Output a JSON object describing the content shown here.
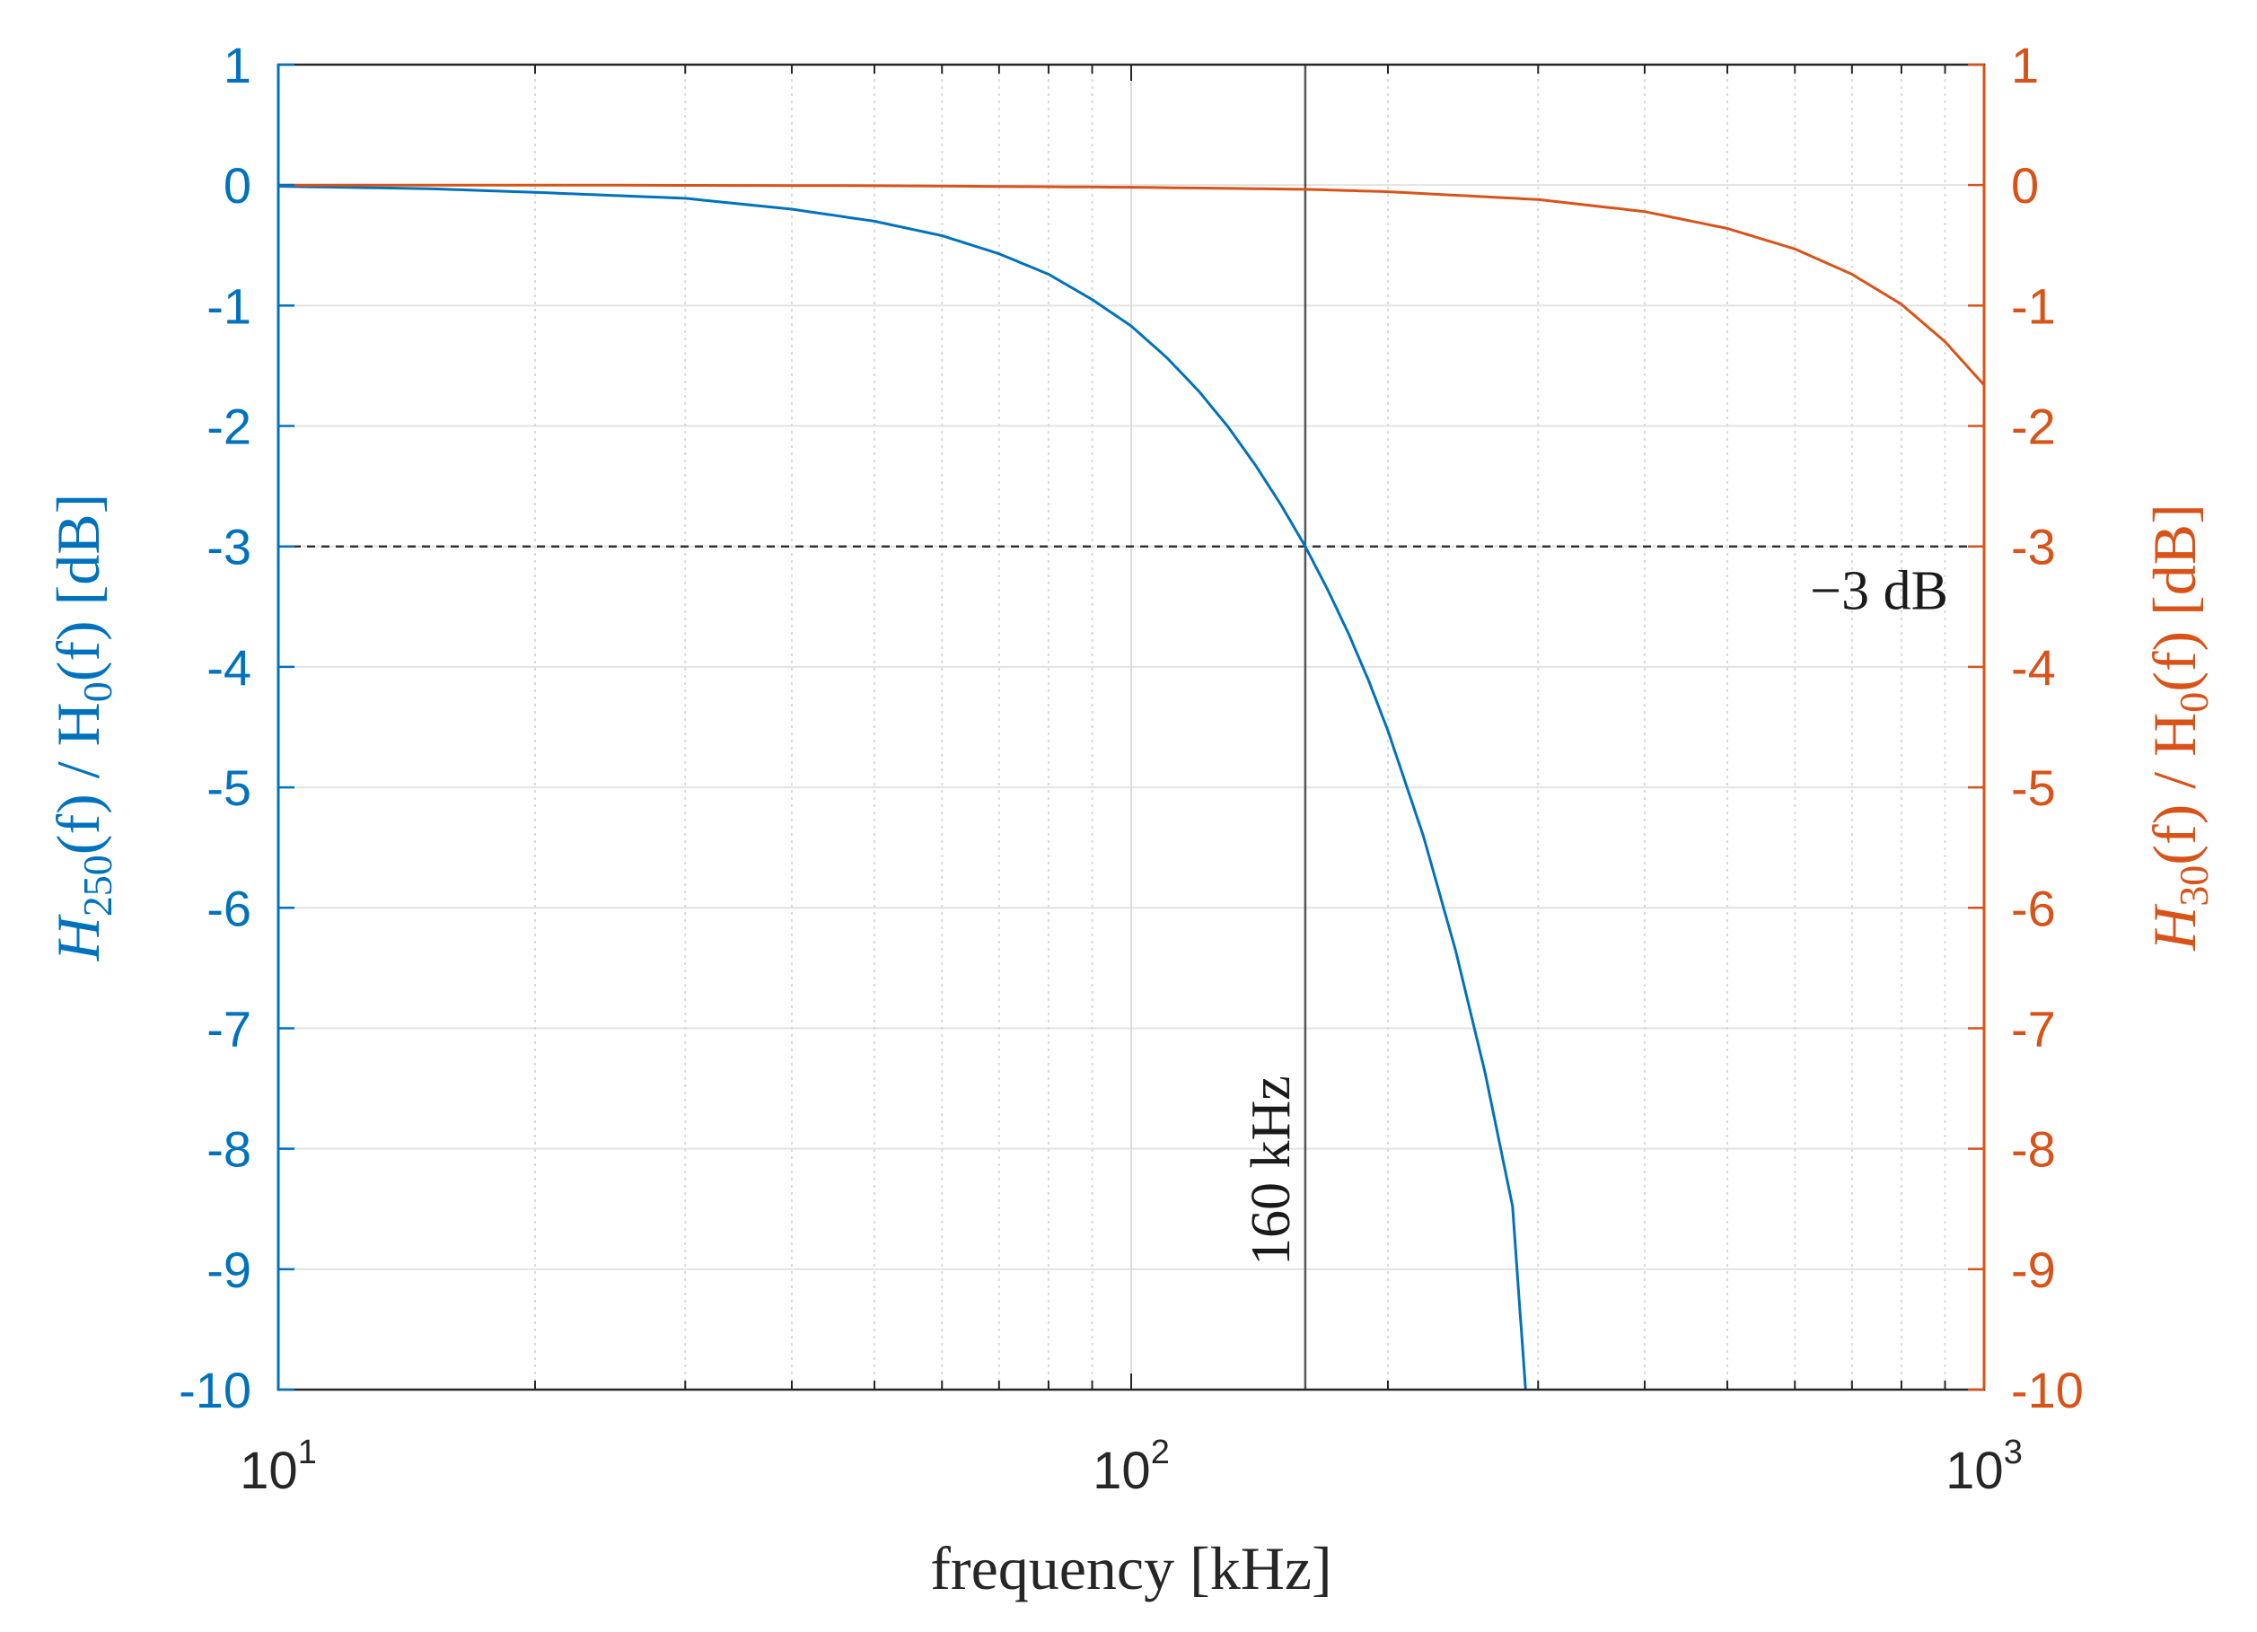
{
  "colors": {
    "series_a": "#0072BD",
    "series_b": "#D95319",
    "frame": "#262626",
    "grid": "#e3e3e3",
    "ref": "#333333"
  },
  "chart_data": {
    "type": "line",
    "x_scale": "log",
    "xlim": [
      10,
      1000
    ],
    "ylim": [
      -10,
      1
    ],
    "grid": true,
    "xlabel": "frequency [kHz]",
    "ylabel_left": "H250(f) / H0(f) [dB]",
    "ylabel_left_parts": {
      "main": "H",
      "sub": "250",
      "rest": "(f)  /  H",
      "sub2": "0",
      "tail": "(f)  [dB]"
    },
    "ylabel_right": "H30(f) / H0(f) [dB]",
    "ylabel_right_parts": {
      "main": "H",
      "sub": "30",
      "rest": "(f)  /  H",
      "sub2": "0",
      "tail": "(f)  [dB]"
    },
    "y_ticks": [
      1,
      0,
      -1,
      -2,
      -3,
      -4,
      -5,
      -6,
      -7,
      -8,
      -9,
      -10
    ],
    "y_tick_labels": [
      "1",
      "0",
      "-1",
      "-2",
      "-3",
      "-4",
      "-5",
      "-6",
      "-7",
      "-8",
      "-9",
      "-10"
    ],
    "x_ticks": [
      {
        "value": 10,
        "base": "10",
        "exp": "1"
      },
      {
        "value": 100,
        "base": "10",
        "exp": "2"
      },
      {
        "value": 1000,
        "base": "10",
        "exp": "3"
      }
    ],
    "series": [
      {
        "name": "H250(f)/H0(f)",
        "axis": "left",
        "x": [
          10,
          15,
          20,
          30,
          40,
          50,
          60,
          70,
          80,
          90,
          100,
          110,
          120,
          130,
          140,
          150,
          160,
          170,
          180,
          190,
          200,
          220,
          240,
          260,
          280,
          290
        ],
        "y": [
          -0.01,
          -0.03,
          -0.06,
          -0.11,
          -0.2,
          -0.3,
          -0.42,
          -0.57,
          -0.74,
          -0.95,
          -1.17,
          -1.43,
          -1.71,
          -2.01,
          -2.33,
          -2.66,
          -3.0,
          -3.36,
          -3.73,
          -4.12,
          -4.53,
          -5.4,
          -6.35,
          -7.37,
          -8.48,
          -10.0
        ]
      },
      {
        "name": "H30(f)/H0(f)",
        "axis": "right",
        "x": [
          10,
          20,
          50,
          100,
          160,
          200,
          300,
          400,
          500,
          600,
          700,
          800,
          900,
          1000
        ],
        "y": [
          0.0,
          0.0,
          -0.005,
          -0.018,
          -0.035,
          -0.055,
          -0.12,
          -0.22,
          -0.36,
          -0.53,
          -0.74,
          -0.99,
          -1.3,
          -1.66
        ]
      }
    ],
    "reference_lines": [
      {
        "orientation": "horizontal",
        "value": -3,
        "style": "dashed",
        "label": "−3 dB"
      },
      {
        "orientation": "vertical",
        "value": 160,
        "style": "solid",
        "label": "160 kHz"
      }
    ]
  }
}
